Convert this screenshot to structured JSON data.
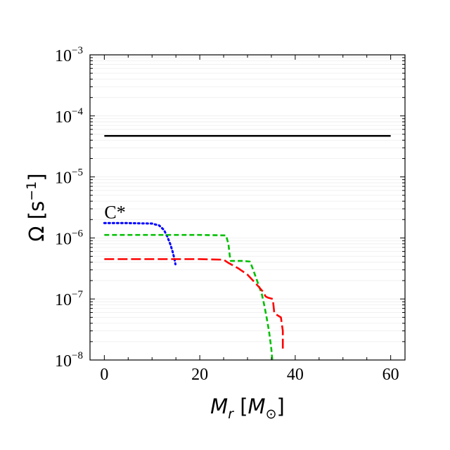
{
  "chart_data": {
    "type": "line",
    "title": "",
    "xlabel": {
      "main": "M",
      "sub": "r",
      "unit_prefix": " [",
      "unit_main": "M",
      "unit_sub": "⊙",
      "unit_suffix": "]"
    },
    "ylabel": {
      "main": "Ω [s",
      "sup": "−1",
      "suffix": "]"
    },
    "xlim": [
      -3,
      63
    ],
    "ylim": [
      1e-08,
      0.001
    ],
    "yscale": "log",
    "grid": true,
    "x_ticks": [
      {
        "value": 0,
        "label": "0"
      },
      {
        "value": 20,
        "label": "20"
      },
      {
        "value": 40,
        "label": "40"
      },
      {
        "value": 60,
        "label": "60"
      }
    ],
    "y_ticks": [
      {
        "value": 1e-08,
        "base": "10",
        "exp": "−8"
      },
      {
        "value": 1e-07,
        "base": "10",
        "exp": "−7"
      },
      {
        "value": 1e-06,
        "base": "10",
        "exp": "−6"
      },
      {
        "value": 1e-05,
        "base": "10",
        "exp": "−5"
      },
      {
        "value": 0.0001,
        "base": "10",
        "exp": "−4"
      },
      {
        "value": 0.001,
        "base": "10",
        "exp": "−3"
      }
    ],
    "annotations": [
      {
        "text": "C*",
        "x": 0,
        "y": 2.6e-06
      }
    ],
    "series": [
      {
        "color": "#000000",
        "dash": "solid",
        "x": [
          0,
          60
        ],
        "y": [
          4.7e-05,
          4.7e-05
        ]
      },
      {
        "color": "#0000ff",
        "dash": "dotted",
        "x": [
          0,
          5,
          10,
          11.5,
          12.5,
          13.2,
          13.8,
          14.3,
          14.7,
          14.9
        ],
        "y": [
          1.75e-06,
          1.75e-06,
          1.72e-06,
          1.6e-06,
          1.35e-06,
          1.05e-06,
          8e-07,
          6e-07,
          4.5e-07,
          3.7e-07
        ]
      },
      {
        "color": "#00bf00",
        "dash": "dashed",
        "x": [
          0,
          10,
          20,
          25.5,
          26,
          26.3,
          26.5,
          29,
          30.5,
          31,
          32,
          33,
          33.5,
          34,
          34.5,
          34.8,
          35,
          35.1,
          35.2
        ],
        "y": [
          1.12e-06,
          1.12e-06,
          1.12e-06,
          1.1e-06,
          8e-07,
          5e-07,
          4.2e-07,
          4.2e-07,
          4.1e-07,
          3.3e-07,
          2e-07,
          1.2e-07,
          8e-08,
          5e-08,
          3e-08,
          2e-08,
          1.5e-08,
          1.2e-08,
          1e-08
        ]
      },
      {
        "color": "#ff0000",
        "dash": "longdash",
        "x": [
          0,
          10,
          20,
          25,
          26,
          28,
          30,
          32,
          33.3,
          33.8,
          34.3,
          35.3,
          35.6,
          35.8,
          37,
          37.4,
          37.4
        ],
        "y": [
          4.5e-07,
          4.5e-07,
          4.5e-07,
          4.4e-07,
          3.9e-07,
          3.2e-07,
          2.5e-07,
          1.7e-07,
          1.3e-07,
          1.1e-07,
          1.05e-07,
          1e-07,
          6e-08,
          5.7e-08,
          5e-08,
          3e-08,
          1.4e-08
        ]
      }
    ]
  }
}
